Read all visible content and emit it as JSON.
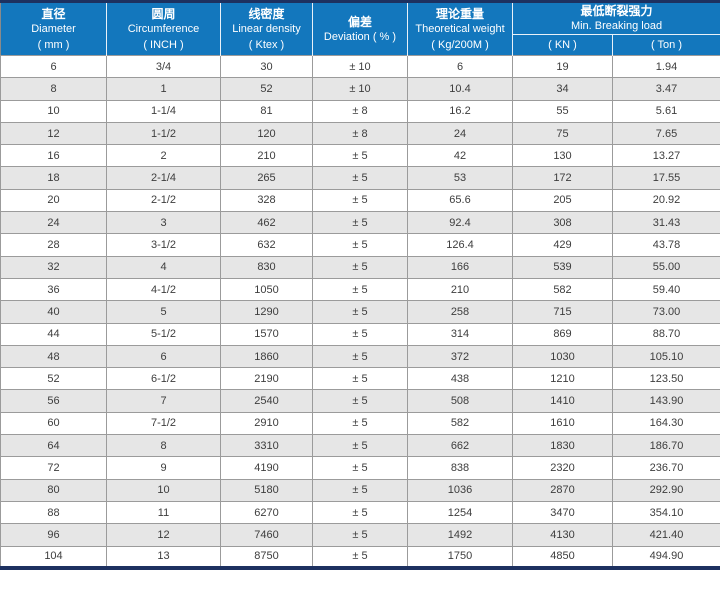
{
  "colors": {
    "header_blue": "#1377bd",
    "navy_border": "#1d3160",
    "stripe_gray": "#e6e6e6",
    "grid_gray": "#9b9b9b",
    "header_text": "#ffffff",
    "body_text": "#3d3d3d"
  },
  "table": {
    "header": {
      "columns": [
        {
          "zh": "直径",
          "en": "Diameter",
          "unit": "( mm )"
        },
        {
          "zh": "圆周",
          "en": "Circumference",
          "unit": "( INCH )"
        },
        {
          "zh": "线密度",
          "en": "Linear density",
          "unit": "( Ktex )"
        },
        {
          "zh": "偏差",
          "en": "Deviation ( % )"
        },
        {
          "zh": "理论重量",
          "en": "Theoretical weight",
          "unit": "( Kg/200M )"
        }
      ],
      "breaking_load": {
        "zh": "最低断裂强力",
        "en": "Min. Breaking load",
        "sub_kn": "( KN )",
        "sub_ton": "( Ton )"
      }
    },
    "rows": [
      [
        "6",
        "3/4",
        "30",
        "± 10",
        "6",
        "19",
        "1.94"
      ],
      [
        "8",
        "1",
        "52",
        "± 10",
        "10.4",
        "34",
        "3.47"
      ],
      [
        "10",
        "1-1/4",
        "81",
        "± 8",
        "16.2",
        "55",
        "5.61"
      ],
      [
        "12",
        "1-1/2",
        "120",
        "± 8",
        "24",
        "75",
        "7.65"
      ],
      [
        "16",
        "2",
        "210",
        "± 5",
        "42",
        "130",
        "13.27"
      ],
      [
        "18",
        "2-1/4",
        "265",
        "± 5",
        "53",
        "172",
        "17.55"
      ],
      [
        "20",
        "2-1/2",
        "328",
        "± 5",
        "65.6",
        "205",
        "20.92"
      ],
      [
        "24",
        "3",
        "462",
        "± 5",
        "92.4",
        "308",
        "31.43"
      ],
      [
        "28",
        "3-1/2",
        "632",
        "± 5",
        "126.4",
        "429",
        "43.78"
      ],
      [
        "32",
        "4",
        "830",
        "± 5",
        "166",
        "539",
        "55.00"
      ],
      [
        "36",
        "4-1/2",
        "1050",
        "± 5",
        "210",
        "582",
        "59.40"
      ],
      [
        "40",
        "5",
        "1290",
        "± 5",
        "258",
        "715",
        "73.00"
      ],
      [
        "44",
        "5-1/2",
        "1570",
        "± 5",
        "314",
        "869",
        "88.70"
      ],
      [
        "48",
        "6",
        "1860",
        "± 5",
        "372",
        "1030",
        "105.10"
      ],
      [
        "52",
        "6-1/2",
        "2190",
        "± 5",
        "438",
        "1210",
        "123.50"
      ],
      [
        "56",
        "7",
        "2540",
        "± 5",
        "508",
        "1410",
        "143.90"
      ],
      [
        "60",
        "7-1/2",
        "2910",
        "± 5",
        "582",
        "1610",
        "164.30"
      ],
      [
        "64",
        "8",
        "3310",
        "± 5",
        "662",
        "1830",
        "186.70"
      ],
      [
        "72",
        "9",
        "4190",
        "± 5",
        "838",
        "2320",
        "236.70"
      ],
      [
        "80",
        "10",
        "5180",
        "± 5",
        "1036",
        "2870",
        "292.90"
      ],
      [
        "88",
        "11",
        "6270",
        "± 5",
        "1254",
        "3470",
        "354.10"
      ],
      [
        "96",
        "12",
        "7460",
        "± 5",
        "1492",
        "4130",
        "421.40"
      ],
      [
        "104",
        "13",
        "8750",
        "± 5",
        "1750",
        "4850",
        "494.90"
      ]
    ]
  }
}
